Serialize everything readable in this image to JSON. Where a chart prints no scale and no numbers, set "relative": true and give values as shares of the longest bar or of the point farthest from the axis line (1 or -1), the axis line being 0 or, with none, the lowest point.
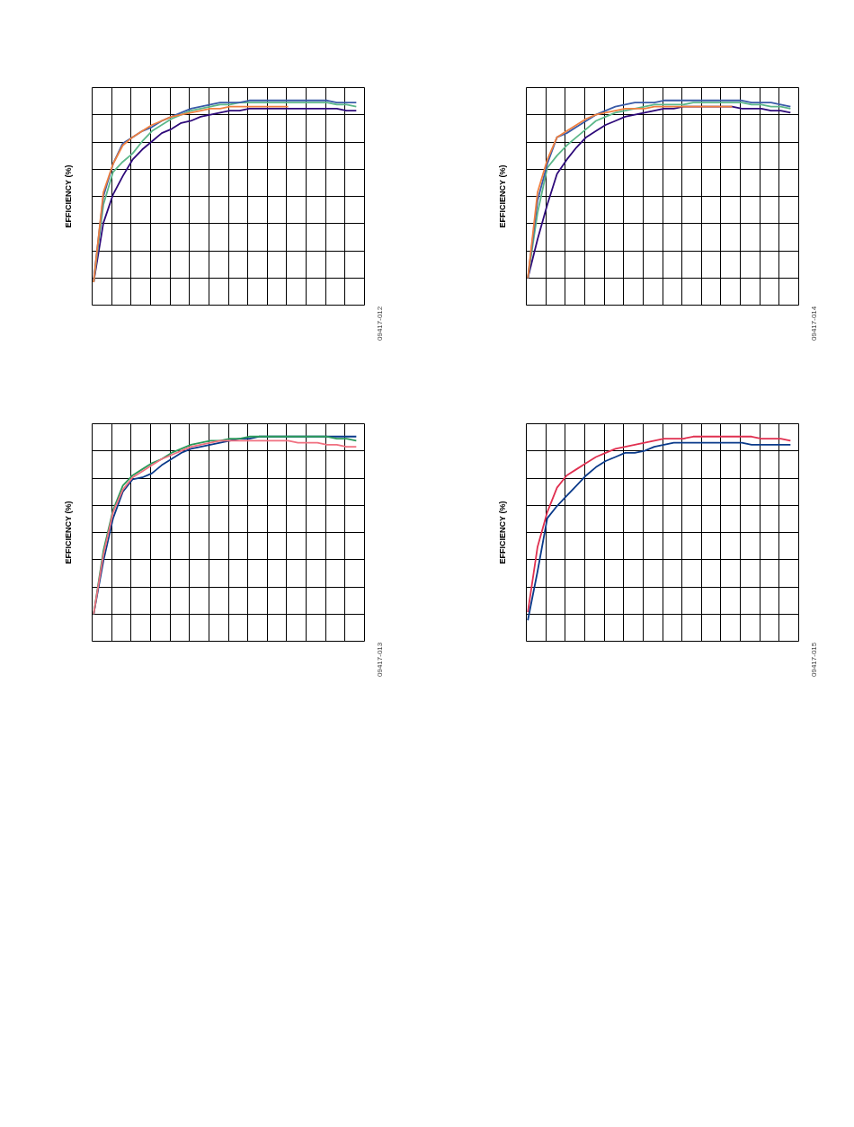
{
  "chart_data": [
    {
      "type": "line",
      "relative": true,
      "ylabel": "EFFICIENCY (%)",
      "grid": true,
      "tick_labels": false,
      "line_style": "solid",
      "annotations": [
        "09417-012"
      ],
      "categories": [
        null,
        null,
        null,
        null,
        null,
        null,
        null,
        null,
        null,
        null,
        null,
        null,
        null,
        null,
        null,
        null,
        null,
        null,
        null,
        null,
        null,
        null,
        null,
        null,
        null,
        null,
        null,
        null
      ],
      "series": [
        {
          "color": "#2e0a7a",
          "values": [
            0.11,
            0.4,
            0.54,
            0.63,
            0.71,
            0.76,
            0.8,
            0.84,
            0.86,
            0.89,
            0.9,
            0.92,
            0.93,
            0.94,
            0.95,
            0.95,
            0.96,
            0.96,
            0.96,
            0.96,
            0.96,
            0.96,
            0.96,
            0.96,
            0.96,
            0.96,
            0.95,
            0.95
          ]
        },
        {
          "color": "#5cb88a",
          "values": [
            0.11,
            0.49,
            0.65,
            0.7,
            0.74,
            0.8,
            0.85,
            0.88,
            0.91,
            0.93,
            0.95,
            0.96,
            0.97,
            0.98,
            0.98,
            0.99,
            0.99,
            0.99,
            0.99,
            0.99,
            0.99,
            0.99,
            0.99,
            0.99,
            0.99,
            0.98,
            0.98,
            0.97
          ]
        },
        {
          "color": "#3a5ba8",
          "values": [
            0.12,
            0.53,
            0.69,
            0.79,
            0.82,
            0.85,
            0.87,
            0.9,
            0.92,
            0.94,
            0.96,
            0.97,
            0.98,
            0.99,
            0.99,
            0.99,
            1.0,
            1.0,
            1.0,
            1.0,
            1.0,
            1.0,
            1.0,
            1.0,
            1.0,
            0.99,
            0.99,
            0.99
          ]
        },
        {
          "color": "#f08040",
          "values": [
            0.11,
            0.55,
            0.69,
            0.78,
            0.82,
            0.85,
            0.88,
            0.9,
            0.92,
            0.93,
            0.94,
            0.95,
            0.96,
            0.96,
            0.97,
            0.97,
            0.97,
            0.97,
            0.97,
            0.97,
            0.97,
            null,
            null,
            null,
            null,
            null,
            null,
            null
          ]
        }
      ]
    },
    {
      "type": "line",
      "relative": true,
      "ylabel": "EFFICIENCY (%)",
      "grid": true,
      "tick_labels": false,
      "line_style": "solid",
      "annotations": [
        "09417-014"
      ],
      "categories": [
        null,
        null,
        null,
        null,
        null,
        null,
        null,
        null,
        null,
        null,
        null,
        null,
        null,
        null,
        null,
        null,
        null,
        null,
        null,
        null,
        null,
        null,
        null,
        null,
        null,
        null,
        null,
        null
      ],
      "series": [
        {
          "color": "#2e0a7a",
          "values": [
            0.13,
            0.32,
            0.49,
            0.64,
            0.71,
            0.77,
            0.82,
            0.85,
            0.88,
            0.9,
            0.92,
            0.93,
            0.94,
            0.95,
            0.96,
            0.96,
            0.97,
            0.97,
            0.97,
            0.97,
            0.97,
            0.97,
            0.96,
            0.96,
            0.96,
            0.95,
            0.95,
            0.94
          ]
        },
        {
          "color": "#5cb88a",
          "values": [
            0.13,
            0.45,
            0.67,
            0.73,
            0.78,
            0.82,
            0.86,
            0.9,
            0.92,
            0.94,
            0.95,
            0.96,
            0.97,
            0.98,
            0.98,
            0.98,
            0.98,
            0.99,
            0.99,
            0.99,
            0.99,
            0.99,
            0.99,
            0.98,
            0.98,
            0.97,
            0.97,
            0.96
          ]
        },
        {
          "color": "#3a5ba8",
          "values": [
            0.13,
            0.51,
            0.69,
            0.82,
            0.84,
            0.87,
            0.9,
            0.93,
            0.95,
            0.97,
            0.98,
            0.99,
            0.99,
            0.99,
            1.0,
            1.0,
            1.0,
            1.0,
            1.0,
            1.0,
            1.0,
            1.0,
            1.0,
            0.99,
            0.99,
            0.99,
            0.98,
            0.97
          ]
        },
        {
          "color": "#f08040",
          "values": [
            0.13,
            0.55,
            0.71,
            0.82,
            0.85,
            0.88,
            0.91,
            0.93,
            0.94,
            0.95,
            0.96,
            0.96,
            0.96,
            0.97,
            0.97,
            0.97,
            0.97,
            0.97,
            0.97,
            0.97,
            0.97,
            0.97,
            null,
            null,
            null,
            null,
            null,
            null
          ]
        }
      ]
    },
    {
      "type": "line",
      "relative": true,
      "ylabel": "EFFICIENCY (%)",
      "grid": true,
      "tick_labels": false,
      "line_style": "solid",
      "annotations": [
        "09417-013"
      ],
      "categories": [
        null,
        null,
        null,
        null,
        null,
        null,
        null,
        null,
        null,
        null,
        null,
        null,
        null,
        null,
        null,
        null,
        null,
        null,
        null,
        null,
        null,
        null,
        null,
        null,
        null,
        null,
        null,
        null
      ],
      "series": [
        {
          "color": "#0a3a8a",
          "values": [
            0.13,
            0.39,
            0.6,
            0.73,
            0.79,
            0.8,
            0.82,
            0.86,
            0.89,
            0.92,
            0.94,
            0.95,
            0.96,
            0.97,
            0.98,
            0.99,
            0.99,
            1.0,
            1.0,
            1.0,
            1.0,
            1.0,
            1.0,
            1.0,
            1.0,
            1.0,
            1.0,
            1.0
          ]
        },
        {
          "color": "#2a9a5a",
          "values": [
            0.13,
            0.44,
            0.64,
            0.76,
            0.81,
            0.84,
            0.87,
            0.89,
            0.92,
            0.94,
            0.96,
            0.97,
            0.98,
            0.98,
            0.99,
            0.99,
            1.0,
            1.0,
            1.0,
            1.0,
            1.0,
            1.0,
            1.0,
            1.0,
            1.0,
            0.99,
            0.99,
            0.98
          ]
        },
        {
          "color": "#f07080",
          "values": [
            0.13,
            0.42,
            0.63,
            0.74,
            0.8,
            0.83,
            0.86,
            0.89,
            0.91,
            0.93,
            0.95,
            0.96,
            0.97,
            0.98,
            0.98,
            0.98,
            0.98,
            0.98,
            0.98,
            0.98,
            0.98,
            0.97,
            0.97,
            0.97,
            0.96,
            0.96,
            0.95,
            0.95
          ]
        }
      ]
    },
    {
      "type": "line",
      "relative": true,
      "ylabel": "EFFICIENCY (%)",
      "grid": true,
      "tick_labels": false,
      "line_style": "solid",
      "annotations": [
        "09417-015"
      ],
      "categories": [
        null,
        null,
        null,
        null,
        null,
        null,
        null,
        null,
        null,
        null,
        null,
        null,
        null,
        null,
        null,
        null,
        null,
        null,
        null,
        null,
        null,
        null,
        null,
        null,
        null,
        null,
        null,
        null
      ],
      "series": [
        {
          "color": "#e03050",
          "values": [
            0.14,
            0.46,
            0.63,
            0.75,
            0.81,
            0.84,
            0.87,
            0.9,
            0.92,
            0.94,
            0.95,
            0.96,
            0.97,
            0.98,
            0.99,
            0.99,
            0.99,
            1.0,
            1.0,
            1.0,
            1.0,
            1.0,
            1.0,
            1.0,
            0.99,
            0.99,
            0.99,
            0.98
          ]
        },
        {
          "color": "#0a3a8a",
          "values": [
            0.1,
            0.34,
            0.6,
            0.66,
            0.71,
            0.76,
            0.81,
            0.85,
            0.88,
            0.9,
            0.92,
            0.92,
            0.93,
            0.95,
            0.96,
            0.97,
            0.97,
            0.97,
            0.97,
            0.97,
            0.97,
            0.97,
            0.97,
            0.96,
            0.96,
            0.96,
            0.96,
            0.96
          ]
        }
      ]
    }
  ]
}
